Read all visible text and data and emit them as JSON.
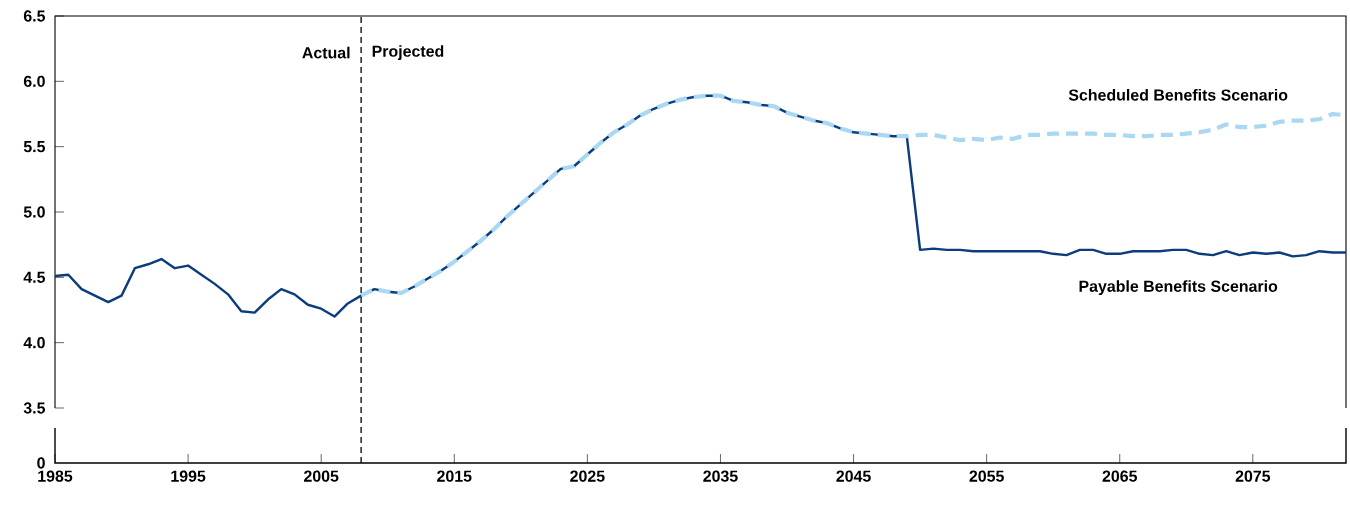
{
  "chart_data": [
    {
      "type": "line",
      "xlim": [
        1985,
        2082
      ],
      "ylim": [
        3.5,
        6.5
      ],
      "yticks": [
        3.5,
        {
          "value": 4,
          "label": "4.0"
        },
        4.5,
        {
          "value": 5,
          "label": "5.0"
        },
        5.5,
        {
          "value": 6,
          "label": "6.0"
        },
        6.5
      ],
      "xticks": [
        1985,
        1995,
        2005,
        2015,
        2025,
        2035,
        2045,
        2055,
        2065,
        2075
      ],
      "series": [
        {
          "name": "Payable Benefits Scenario",
          "color": "#0b3c7d",
          "line_style": "solid",
          "x": [
            1985,
            1986,
            1987,
            1988,
            1989,
            1990,
            1991,
            1992,
            1993,
            1994,
            1995,
            1996,
            1997,
            1998,
            1999,
            2000,
            2001,
            2002,
            2003,
            2004,
            2005,
            2006,
            2007,
            2008,
            2009,
            2010,
            2011,
            2012,
            2013,
            2014,
            2015,
            2016,
            2017,
            2018,
            2019,
            2020,
            2021,
            2022,
            2023,
            2024,
            2025,
            2026,
            2027,
            2028,
            2029,
            2030,
            2031,
            2032,
            2033,
            2034,
            2035,
            2036,
            2037,
            2038,
            2039,
            2040,
            2041,
            2042,
            2043,
            2044,
            2045,
            2046,
            2047,
            2048,
            2049,
            2050,
            2051,
            2052,
            2053,
            2054,
            2055,
            2056,
            2057,
            2058,
            2059,
            2060,
            2061,
            2062,
            2063,
            2064,
            2065,
            2066,
            2067,
            2068,
            2069,
            2070,
            2071,
            2072,
            2073,
            2074,
            2075,
            2076,
            2077,
            2078,
            2079,
            2080,
            2081,
            2082
          ],
          "values": [
            4.51,
            4.52,
            4.41,
            4.36,
            4.31,
            4.36,
            4.57,
            4.6,
            4.64,
            4.57,
            4.59,
            4.52,
            4.45,
            4.37,
            4.24,
            4.23,
            4.33,
            4.41,
            4.37,
            4.29,
            4.26,
            4.2,
            4.3,
            4.36,
            4.41,
            4.39,
            4.38,
            4.43,
            4.49,
            4.55,
            4.62,
            4.7,
            4.78,
            4.87,
            4.97,
            5.06,
            5.15,
            5.24,
            5.33,
            5.35,
            5.44,
            5.53,
            5.61,
            5.67,
            5.74,
            5.79,
            5.83,
            5.86,
            5.88,
            5.89,
            5.89,
            5.85,
            5.84,
            5.82,
            5.81,
            5.76,
            5.73,
            5.7,
            5.68,
            5.64,
            5.61,
            5.6,
            5.59,
            5.58,
            5.58,
            4.71,
            4.72,
            4.71,
            4.71,
            4.7,
            4.7,
            4.7,
            4.7,
            4.7,
            4.7,
            4.68,
            4.67,
            4.71,
            4.71,
            4.68,
            4.68,
            4.7,
            4.7,
            4.7,
            4.71,
            4.71,
            4.68,
            4.67,
            4.7,
            4.67,
            4.69,
            4.68,
            4.69,
            4.66,
            4.67,
            4.7,
            4.69,
            4.69
          ]
        },
        {
          "name": "Scheduled Benefits Scenario",
          "color": "#aad8f2",
          "line_style": "dashed",
          "x": [
            2008,
            2009,
            2010,
            2011,
            2012,
            2013,
            2014,
            2015,
            2016,
            2017,
            2018,
            2019,
            2020,
            2021,
            2022,
            2023,
            2024,
            2025,
            2026,
            2027,
            2028,
            2029,
            2030,
            2031,
            2032,
            2033,
            2034,
            2035,
            2036,
            2037,
            2038,
            2039,
            2040,
            2041,
            2042,
            2043,
            2044,
            2045,
            2046,
            2047,
            2048,
            2049,
            2050,
            2051,
            2052,
            2053,
            2054,
            2055,
            2056,
            2057,
            2058,
            2059,
            2060,
            2061,
            2062,
            2063,
            2064,
            2065,
            2066,
            2067,
            2068,
            2069,
            2070,
            2071,
            2072,
            2073,
            2074,
            2075,
            2076,
            2077,
            2078,
            2079,
            2080,
            2081,
            2082
          ],
          "values": [
            4.36,
            4.41,
            4.39,
            4.38,
            4.43,
            4.49,
            4.55,
            4.62,
            4.7,
            4.78,
            4.87,
            4.97,
            5.06,
            5.15,
            5.24,
            5.33,
            5.35,
            5.44,
            5.53,
            5.61,
            5.67,
            5.74,
            5.79,
            5.83,
            5.86,
            5.88,
            5.89,
            5.89,
            5.85,
            5.84,
            5.82,
            5.81,
            5.76,
            5.73,
            5.7,
            5.68,
            5.64,
            5.61,
            5.6,
            5.59,
            5.58,
            5.58,
            5.59,
            5.59,
            5.57,
            5.55,
            5.56,
            5.55,
            5.57,
            5.56,
            5.59,
            5.59,
            5.6,
            5.6,
            5.6,
            5.6,
            5.59,
            5.59,
            5.58,
            5.58,
            5.59,
            5.59,
            5.6,
            5.61,
            5.63,
            5.67,
            5.65,
            5.65,
            5.66,
            5.69,
            5.7,
            5.7,
            5.71,
            5.75,
            5.74
          ]
        }
      ],
      "ref_lines": [
        {
          "axis": "x",
          "value": 2008,
          "color": "#000000",
          "line_style": "dashed"
        }
      ],
      "annotations": [
        {
          "text": "Actual",
          "x": 2008,
          "y": 6.22
        },
        {
          "text": "Projected",
          "x": 2008,
          "y": 6.22
        },
        "0"
      ]
    }
  ]
}
